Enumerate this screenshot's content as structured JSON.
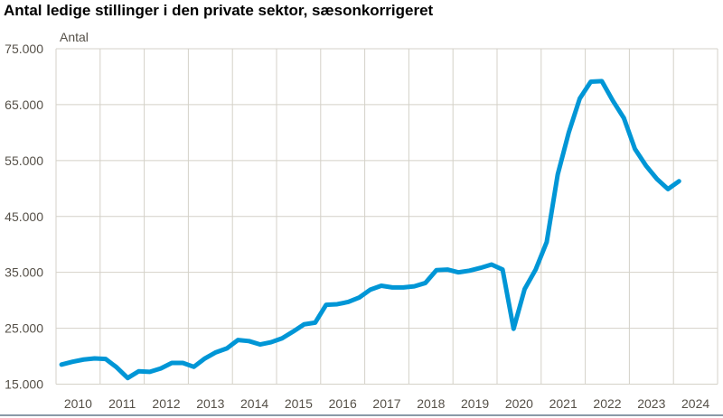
{
  "chart_data": {
    "type": "line",
    "title": "Antal ledige stillinger i den private sektor, sæsonkorrigeret",
    "ylabel": "Antal",
    "xlabel": "",
    "ylim": [
      15000,
      75000
    ],
    "yticks": [
      15000,
      25000,
      35000,
      45000,
      55000,
      65000,
      75000
    ],
    "ytick_labels": [
      "15.000",
      "25.000",
      "35.000",
      "45.000",
      "55.000",
      "65.000",
      "75.000"
    ],
    "x_tick_labels": [
      "2010",
      "2011",
      "2012",
      "2013",
      "2014",
      "2015",
      "2016",
      "2017",
      "2018",
      "2019",
      "2020",
      "2021",
      "2022",
      "2023",
      "2024"
    ],
    "grid": true,
    "line_color": "#0096d6",
    "grid_color": "#d4d1c8",
    "x": [
      "2010K1",
      "2010K2",
      "2010K3",
      "2010K4",
      "2011K1",
      "2011K2",
      "2011K3",
      "2011K4",
      "2012K1",
      "2012K2",
      "2012K3",
      "2012K4",
      "2013K1",
      "2013K2",
      "2013K3",
      "2013K4",
      "2014K1",
      "2014K2",
      "2014K3",
      "2014K4",
      "2015K1",
      "2015K2",
      "2015K3",
      "2015K4",
      "2016K1",
      "2016K2",
      "2016K3",
      "2016K4",
      "2017K1",
      "2017K2",
      "2017K3",
      "2017K4",
      "2018K1",
      "2018K2",
      "2018K3",
      "2018K4",
      "2019K1",
      "2019K2",
      "2019K3",
      "2019K4",
      "2020K1",
      "2020K2",
      "2020K3",
      "2020K4",
      "2021K1",
      "2021K2",
      "2021K3",
      "2021K4",
      "2022K1",
      "2022K2",
      "2022K3",
      "2022K4",
      "2023K1",
      "2023K2",
      "2023K3",
      "2023K4",
      "2024K1"
    ],
    "values": [
      18500,
      19000,
      19400,
      19600,
      19500,
      18000,
      16100,
      17300,
      17200,
      17800,
      18800,
      18800,
      18100,
      19600,
      20700,
      21400,
      22900,
      22700,
      22100,
      22500,
      23200,
      24400,
      25700,
      26000,
      29200,
      29300,
      29700,
      30500,
      31900,
      32600,
      32300,
      32300,
      32500,
      33100,
      35400,
      35500,
      35000,
      35300,
      35800,
      36400,
      35500,
      24900,
      32000,
      35500,
      40400,
      52500,
      60000,
      66100,
      69100,
      69200,
      65700,
      62600,
      57100,
      54100,
      51700,
      49900,
      51300
    ]
  }
}
